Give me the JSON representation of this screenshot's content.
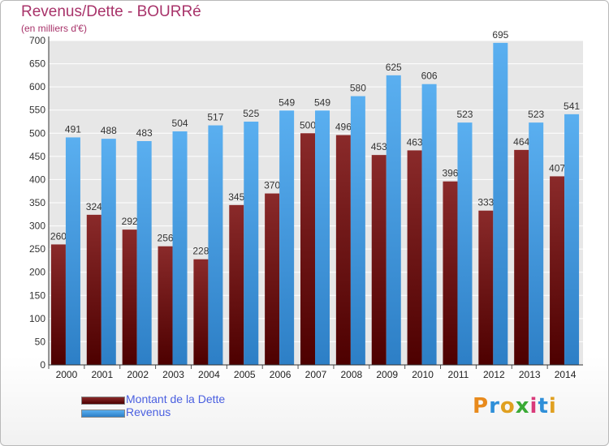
{
  "chart_data": {
    "type": "bar",
    "title": "Revenus/Dette - BOURRé",
    "subtitle": "(en milliers d'€)",
    "categories": [
      "2000",
      "2001",
      "2002",
      "2003",
      "2004",
      "2005",
      "2006",
      "2007",
      "2008",
      "2009",
      "2010",
      "2011",
      "2012",
      "2013",
      "2014"
    ],
    "series": [
      {
        "name": "Montant de la Dette",
        "color": "#7a2020",
        "values": [
          260,
          324,
          292,
          256,
          228,
          345,
          370,
          500,
          496,
          453,
          463,
          396,
          333,
          464,
          407
        ]
      },
      {
        "name": "Revenus",
        "color": "#4da3e8",
        "values": [
          491,
          488,
          483,
          504,
          517,
          525,
          549,
          549,
          580,
          625,
          606,
          523,
          695,
          523,
          541
        ]
      }
    ],
    "ylim": [
      0,
      700
    ],
    "yticks": [
      0,
      50,
      100,
      150,
      200,
      250,
      300,
      350,
      400,
      450,
      500,
      550,
      600,
      650,
      700
    ],
    "grid": true,
    "legend_position": "bottom-left"
  },
  "logo": {
    "text": "Proxiti"
  }
}
